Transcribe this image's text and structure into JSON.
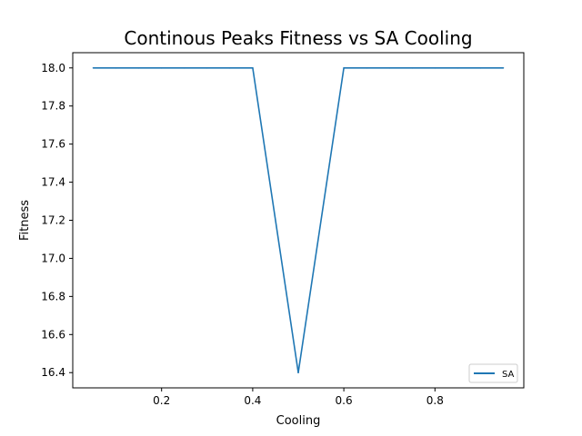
{
  "chart_data": {
    "type": "line",
    "title": "Continous Peaks Fitness vs SA Cooling",
    "xlabel": "Cooling",
    "ylabel": "Fitness",
    "xlim": [
      0.005,
      0.995
    ],
    "ylim": [
      16.32,
      18.08
    ],
    "x_ticks": [
      0.2,
      0.4,
      0.6,
      0.8
    ],
    "y_ticks": [
      16.4,
      16.6,
      16.8,
      17.0,
      17.2,
      17.4,
      17.6,
      17.8,
      18.0
    ],
    "x_tick_labels": [
      "0.2",
      "0.4",
      "0.6",
      "0.8"
    ],
    "y_tick_labels": [
      "16.4",
      "16.6",
      "16.8",
      "17.0",
      "17.2",
      "17.4",
      "17.6",
      "17.8",
      "18.0"
    ],
    "grid": false,
    "legend_position": "lower-right",
    "series": [
      {
        "name": "SA",
        "color": "#1f77b4",
        "x": [
          0.05,
          0.1,
          0.15,
          0.2,
          0.25,
          0.3,
          0.35,
          0.4,
          0.5,
          0.6,
          0.65,
          0.7,
          0.75,
          0.8,
          0.85,
          0.9,
          0.95
        ],
        "y": [
          18.0,
          18.0,
          18.0,
          18.0,
          18.0,
          18.0,
          18.0,
          18.0,
          16.4,
          18.0,
          18.0,
          18.0,
          18.0,
          18.0,
          18.0,
          18.0,
          18.0
        ]
      }
    ]
  }
}
